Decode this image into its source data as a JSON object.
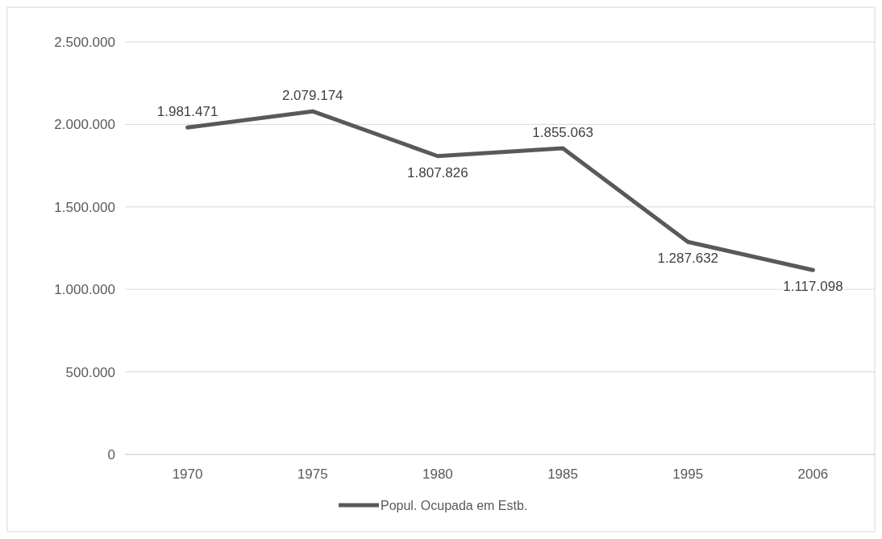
{
  "chart_data": {
    "type": "line",
    "categories": [
      "1970",
      "1975",
      "1980",
      "1985",
      "1995",
      "2006"
    ],
    "series": [
      {
        "name": "Popul. Ocupada em Estb.",
        "color": "#595959",
        "values": [
          1981471,
          2079174,
          1807826,
          1855063,
          1287632,
          1117098
        ],
        "value_labels": [
          "1.981.471",
          "2.079.174",
          "1.807.826",
          "1.855.063",
          "1.287.632",
          "1.117.098"
        ]
      }
    ],
    "ylim": [
      0,
      2500000
    ],
    "yticks": [
      0,
      {
        "value": 500000,
        "label": "500.000"
      },
      {
        "value": 1000000,
        "label": "1.000.000"
      },
      {
        "value": 1500000,
        "label": "1.500.000"
      },
      {
        "value": 2000000,
        "label": "2.000.000"
      },
      {
        "value": 2500000,
        "label": "2.500.000"
      }
    ],
    "grid": "y",
    "legend": "bottom",
    "marker": "none",
    "line_style": "solid"
  }
}
